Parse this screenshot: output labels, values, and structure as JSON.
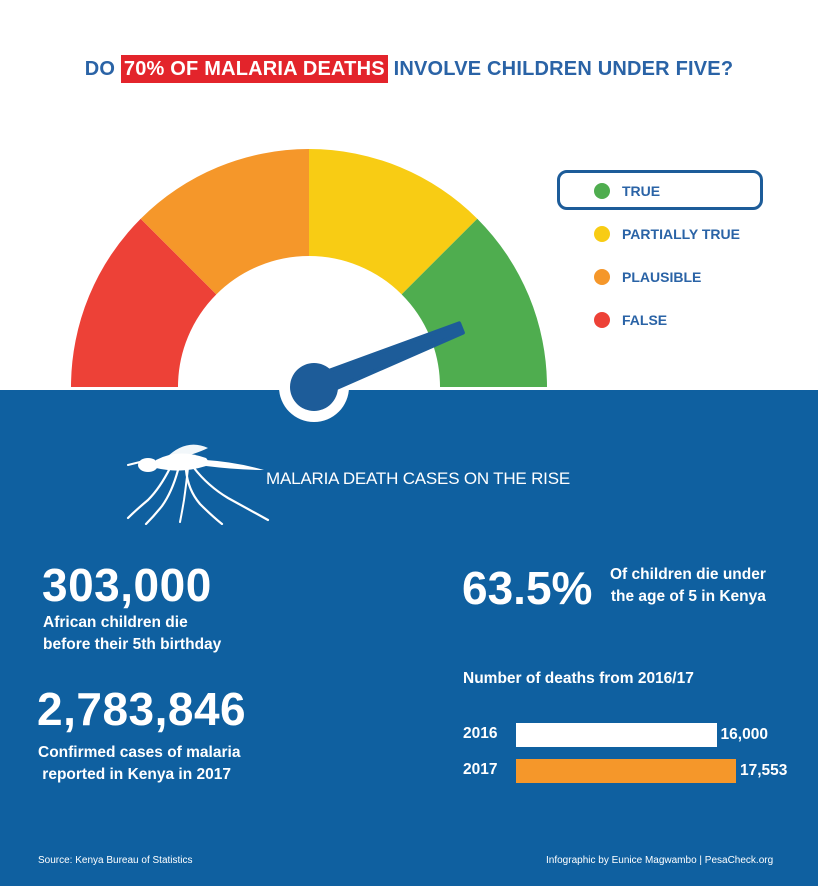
{
  "title": {
    "prefix": "DO",
    "highlight": "70% OF MALARIA DEATHS",
    "suffix": "INVOLVE CHILDREN UNDER FIVE?"
  },
  "gauge": {
    "segments": [
      {
        "name": "false",
        "color": "#ed4137"
      },
      {
        "name": "plausible",
        "color": "#f5972a"
      },
      {
        "name": "partially-true",
        "color": "#f8cc14"
      },
      {
        "name": "true",
        "color": "#4fad4f"
      }
    ],
    "needle_color": "#1d5c99",
    "verdict": "TRUE"
  },
  "legend": {
    "items": [
      {
        "label": "TRUE",
        "color": "#4fad4f",
        "selected": true
      },
      {
        "label": "PARTIALLY TRUE",
        "color": "#f8cc14",
        "selected": false
      },
      {
        "label": "PLAUSIBLE",
        "color": "#f5972a",
        "selected": false
      },
      {
        "label": "FALSE",
        "color": "#ed4137",
        "selected": false
      }
    ]
  },
  "panel": {
    "color": "#0f60a0",
    "mosquito_icon": "mosquito-icon",
    "rise_label": "MALARIA DEATH CASES ON THE RISE"
  },
  "stats": {
    "children_deaths": {
      "value": "303,000",
      "line1": "African children die",
      "line2": "before their 5th birthday"
    },
    "confirmed_cases": {
      "value": "2,783,846",
      "line1": "Confirmed cases of malaria",
      "line2": " reported in Kenya in 2017"
    },
    "under_five_share": {
      "value": "63.5%",
      "line1": "Of children die under",
      "line2": "the age of 5 in Kenya"
    }
  },
  "chart_data": {
    "type": "bar",
    "orientation": "horizontal",
    "title": "Number of deaths from 2016/17",
    "categories": [
      "2016",
      "2017"
    ],
    "values": [
      16000,
      17553
    ],
    "value_labels": [
      "16,000",
      "17,553"
    ],
    "colors": [
      "#ffffff",
      "#f5972a"
    ]
  },
  "footer": {
    "source": "Source: Kenya Bureau of Statistics",
    "credit": "Infographic by Eunice Magwambo | PesaCheck.org"
  }
}
